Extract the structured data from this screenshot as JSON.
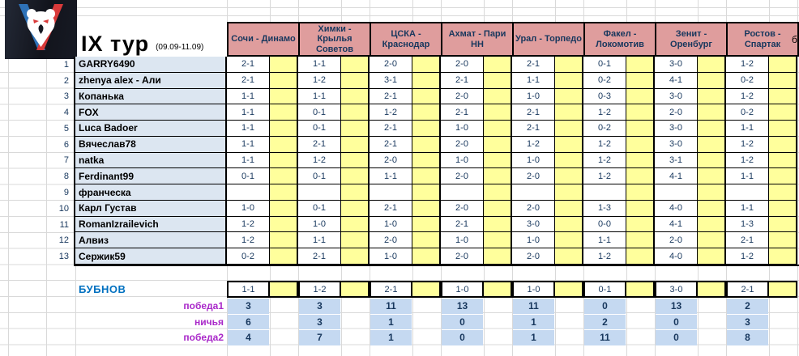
{
  "title": {
    "round": "IX тур",
    "dates": "(09.09-11.09)"
  },
  "extra_col_label": "б",
  "logo": {
    "name": "Russian Premier League bear logo"
  },
  "matches": [
    "Сочи - Динамо",
    "Химки - Крылья Советов",
    "ЦСКА - Краснодар",
    "Ахмат - Пари НН",
    "Урал - Торпедо",
    "Факел - Локомотив",
    "Зенит - Оренбург",
    "Ростов - Спартак"
  ],
  "players": [
    {
      "n": "1",
      "name": "GARRY6490",
      "preds": [
        "2-1",
        "1-1",
        "2-0",
        "2-0",
        "2-1",
        "0-1",
        "3-0",
        "1-2"
      ]
    },
    {
      "n": "2",
      "name": "zhenya alex - Али",
      "preds": [
        "2-1",
        "1-2",
        "3-1",
        "2-1",
        "1-1",
        "0-2",
        "4-1",
        "0-2"
      ]
    },
    {
      "n": "3",
      "name": "Копанька",
      "preds": [
        "1-1",
        "1-1",
        "2-1",
        "2-0",
        "1-0",
        "0-3",
        "3-0",
        "1-2"
      ]
    },
    {
      "n": "4",
      "name": "FOX",
      "preds": [
        "1-1",
        "0-1",
        "1-2",
        "2-1",
        "2-1",
        "1-2",
        "2-0",
        "0-2"
      ]
    },
    {
      "n": "5",
      "name": "Luca Badoer",
      "preds": [
        "1-1",
        "0-1",
        "2-1",
        "1-0",
        "2-1",
        "0-2",
        "3-0",
        "1-1"
      ]
    },
    {
      "n": "6",
      "name": "Вячеслав78",
      "preds": [
        "1-1",
        "2-1",
        "2-1",
        "2-0",
        "1-2",
        "1-2",
        "3-0",
        "1-2"
      ]
    },
    {
      "n": "7",
      "name": "natka",
      "preds": [
        "1-1",
        "1-2",
        "2-0",
        "1-0",
        "1-0",
        "1-2",
        "3-1",
        "1-2"
      ]
    },
    {
      "n": "8",
      "name": "Ferdinant99",
      "preds": [
        "0-1",
        "0-1",
        "1-1",
        "2-0",
        "2-0",
        "1-2",
        "4-1",
        "1-1"
      ]
    },
    {
      "n": "9",
      "name": "франческа",
      "preds": [
        "",
        "",
        "",
        "",
        "",
        "",
        "",
        ""
      ]
    },
    {
      "n": "10",
      "name": "Карл Густав",
      "preds": [
        "1-0",
        "0-1",
        "2-1",
        "2-0",
        "2-0",
        "1-3",
        "4-0",
        "1-1"
      ]
    },
    {
      "n": "11",
      "name": "RomanIzrailevich",
      "preds": [
        "1-2",
        "1-0",
        "1-0",
        "2-1",
        "3-0",
        "0-0",
        "4-1",
        "1-3"
      ]
    },
    {
      "n": "12",
      "name": "Алвиз",
      "preds": [
        "1-2",
        "1-1",
        "2-0",
        "1-0",
        "1-0",
        "1-1",
        "2-0",
        "2-1"
      ]
    },
    {
      "n": "13",
      "name": "Сержик59",
      "preds": [
        "0-2",
        "2-1",
        "1-0",
        "2-0",
        "2-0",
        "1-2",
        "4-0",
        "1-2"
      ]
    }
  ],
  "bubnov": {
    "label": "БУБНОВ",
    "preds": [
      "1-1",
      "1-2",
      "2-1",
      "1-0",
      "1-0",
      "0-1",
      "3-0",
      "2-1"
    ]
  },
  "stats": [
    {
      "label": "победа1",
      "values": [
        "3",
        "3",
        "11",
        "13",
        "11",
        "0",
        "13",
        "2"
      ]
    },
    {
      "label": "ничья",
      "values": [
        "6",
        "3",
        "1",
        "0",
        "1",
        "2",
        "0",
        "3"
      ]
    },
    {
      "label": "победа2",
      "values": [
        "4",
        "7",
        "1",
        "0",
        "1",
        "11",
        "0",
        "8"
      ]
    }
  ],
  "colors": {
    "header_pink": "#DF9D9D",
    "points_yellow": "#FFFF9C",
    "names_bg": "#DCE6F1",
    "stats_bg": "#C5D9F1",
    "text_navy": "#17375D",
    "bubnov_blue": "#0070C0",
    "stats_purple": "#A928C9"
  }
}
